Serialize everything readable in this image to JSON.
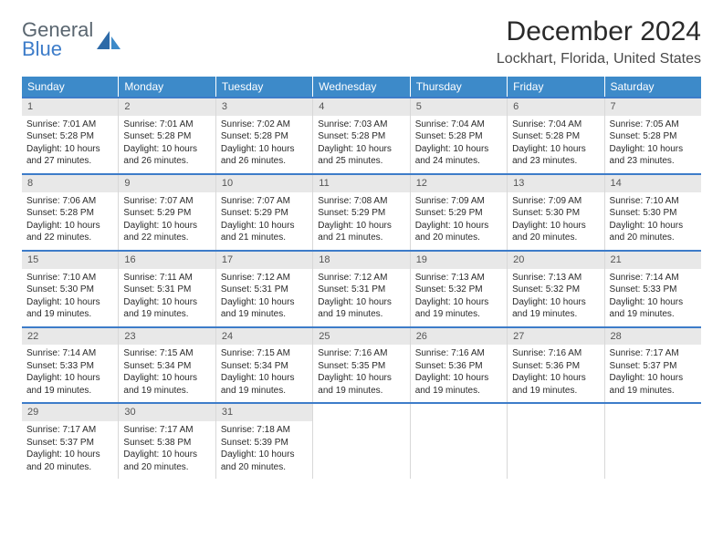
{
  "logo": {
    "line1": "General",
    "line2": "Blue"
  },
  "title": "December 2024",
  "location": "Lockhart, Florida, United States",
  "colors": {
    "header_bg": "#3d8ac9",
    "header_text": "#ffffff",
    "row_divider": "#3d7cc9",
    "daynum_bg": "#e8e8e8",
    "logo_gray": "#5a6670",
    "logo_blue": "#3d7cc9"
  },
  "weekdays": [
    "Sunday",
    "Monday",
    "Tuesday",
    "Wednesday",
    "Thursday",
    "Friday",
    "Saturday"
  ],
  "weeks": [
    [
      {
        "n": "1",
        "sunrise": "7:01 AM",
        "sunset": "5:28 PM",
        "dl1": "Daylight: 10 hours",
        "dl2": "and 27 minutes."
      },
      {
        "n": "2",
        "sunrise": "7:01 AM",
        "sunset": "5:28 PM",
        "dl1": "Daylight: 10 hours",
        "dl2": "and 26 minutes."
      },
      {
        "n": "3",
        "sunrise": "7:02 AM",
        "sunset": "5:28 PM",
        "dl1": "Daylight: 10 hours",
        "dl2": "and 26 minutes."
      },
      {
        "n": "4",
        "sunrise": "7:03 AM",
        "sunset": "5:28 PM",
        "dl1": "Daylight: 10 hours",
        "dl2": "and 25 minutes."
      },
      {
        "n": "5",
        "sunrise": "7:04 AM",
        "sunset": "5:28 PM",
        "dl1": "Daylight: 10 hours",
        "dl2": "and 24 minutes."
      },
      {
        "n": "6",
        "sunrise": "7:04 AM",
        "sunset": "5:28 PM",
        "dl1": "Daylight: 10 hours",
        "dl2": "and 23 minutes."
      },
      {
        "n": "7",
        "sunrise": "7:05 AM",
        "sunset": "5:28 PM",
        "dl1": "Daylight: 10 hours",
        "dl2": "and 23 minutes."
      }
    ],
    [
      {
        "n": "8",
        "sunrise": "7:06 AM",
        "sunset": "5:28 PM",
        "dl1": "Daylight: 10 hours",
        "dl2": "and 22 minutes."
      },
      {
        "n": "9",
        "sunrise": "7:07 AM",
        "sunset": "5:29 PM",
        "dl1": "Daylight: 10 hours",
        "dl2": "and 22 minutes."
      },
      {
        "n": "10",
        "sunrise": "7:07 AM",
        "sunset": "5:29 PM",
        "dl1": "Daylight: 10 hours",
        "dl2": "and 21 minutes."
      },
      {
        "n": "11",
        "sunrise": "7:08 AM",
        "sunset": "5:29 PM",
        "dl1": "Daylight: 10 hours",
        "dl2": "and 21 minutes."
      },
      {
        "n": "12",
        "sunrise": "7:09 AM",
        "sunset": "5:29 PM",
        "dl1": "Daylight: 10 hours",
        "dl2": "and 20 minutes."
      },
      {
        "n": "13",
        "sunrise": "7:09 AM",
        "sunset": "5:30 PM",
        "dl1": "Daylight: 10 hours",
        "dl2": "and 20 minutes."
      },
      {
        "n": "14",
        "sunrise": "7:10 AM",
        "sunset": "5:30 PM",
        "dl1": "Daylight: 10 hours",
        "dl2": "and 20 minutes."
      }
    ],
    [
      {
        "n": "15",
        "sunrise": "7:10 AM",
        "sunset": "5:30 PM",
        "dl1": "Daylight: 10 hours",
        "dl2": "and 19 minutes."
      },
      {
        "n": "16",
        "sunrise": "7:11 AM",
        "sunset": "5:31 PM",
        "dl1": "Daylight: 10 hours",
        "dl2": "and 19 minutes."
      },
      {
        "n": "17",
        "sunrise": "7:12 AM",
        "sunset": "5:31 PM",
        "dl1": "Daylight: 10 hours",
        "dl2": "and 19 minutes."
      },
      {
        "n": "18",
        "sunrise": "7:12 AM",
        "sunset": "5:31 PM",
        "dl1": "Daylight: 10 hours",
        "dl2": "and 19 minutes."
      },
      {
        "n": "19",
        "sunrise": "7:13 AM",
        "sunset": "5:32 PM",
        "dl1": "Daylight: 10 hours",
        "dl2": "and 19 minutes."
      },
      {
        "n": "20",
        "sunrise": "7:13 AM",
        "sunset": "5:32 PM",
        "dl1": "Daylight: 10 hours",
        "dl2": "and 19 minutes."
      },
      {
        "n": "21",
        "sunrise": "7:14 AM",
        "sunset": "5:33 PM",
        "dl1": "Daylight: 10 hours",
        "dl2": "and 19 minutes."
      }
    ],
    [
      {
        "n": "22",
        "sunrise": "7:14 AM",
        "sunset": "5:33 PM",
        "dl1": "Daylight: 10 hours",
        "dl2": "and 19 minutes."
      },
      {
        "n": "23",
        "sunrise": "7:15 AM",
        "sunset": "5:34 PM",
        "dl1": "Daylight: 10 hours",
        "dl2": "and 19 minutes."
      },
      {
        "n": "24",
        "sunrise": "7:15 AM",
        "sunset": "5:34 PM",
        "dl1": "Daylight: 10 hours",
        "dl2": "and 19 minutes."
      },
      {
        "n": "25",
        "sunrise": "7:16 AM",
        "sunset": "5:35 PM",
        "dl1": "Daylight: 10 hours",
        "dl2": "and 19 minutes."
      },
      {
        "n": "26",
        "sunrise": "7:16 AM",
        "sunset": "5:36 PM",
        "dl1": "Daylight: 10 hours",
        "dl2": "and 19 minutes."
      },
      {
        "n": "27",
        "sunrise": "7:16 AM",
        "sunset": "5:36 PM",
        "dl1": "Daylight: 10 hours",
        "dl2": "and 19 minutes."
      },
      {
        "n": "28",
        "sunrise": "7:17 AM",
        "sunset": "5:37 PM",
        "dl1": "Daylight: 10 hours",
        "dl2": "and 19 minutes."
      }
    ],
    [
      {
        "n": "29",
        "sunrise": "7:17 AM",
        "sunset": "5:37 PM",
        "dl1": "Daylight: 10 hours",
        "dl2": "and 20 minutes."
      },
      {
        "n": "30",
        "sunrise": "7:17 AM",
        "sunset": "5:38 PM",
        "dl1": "Daylight: 10 hours",
        "dl2": "and 20 minutes."
      },
      {
        "n": "31",
        "sunrise": "7:18 AM",
        "sunset": "5:39 PM",
        "dl1": "Daylight: 10 hours",
        "dl2": "and 20 minutes."
      },
      {
        "empty": true
      },
      {
        "empty": true
      },
      {
        "empty": true
      },
      {
        "empty": true
      }
    ]
  ]
}
